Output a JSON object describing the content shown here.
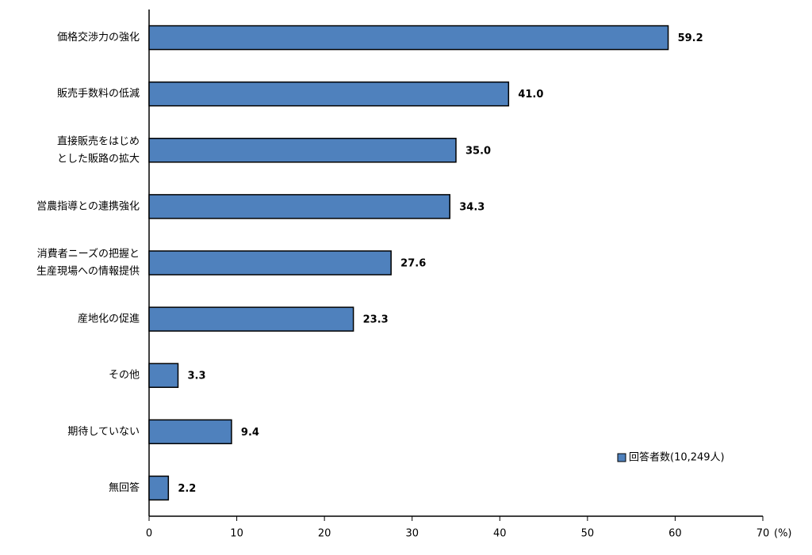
{
  "chart_data": {
    "type": "bar",
    "orientation": "horizontal",
    "categories": [
      [
        "価格交渉力の強化"
      ],
      [
        "販売手数料の低減"
      ],
      [
        "直接販売をはじめ",
        "とした販路の拡大"
      ],
      [
        "営農指導との連携強化"
      ],
      [
        "消費者ニーズの把握と",
        "生産現場への情報提供"
      ],
      [
        "産地化の促進"
      ],
      [
        "その他"
      ],
      [
        "期待していない"
      ],
      [
        "無回答"
      ]
    ],
    "series": [
      {
        "name": "回答者数(10,249人)",
        "color": "#4f81bd",
        "values": [
          59.2,
          41.0,
          35.0,
          34.3,
          27.6,
          23.3,
          3.3,
          9.4,
          2.2
        ],
        "value_labels": [
          "59.2",
          "41.0",
          "35.0",
          "34.3",
          "27.6",
          "23.3",
          "3.3",
          "9.4",
          "2.2"
        ]
      }
    ],
    "xlim": [
      0,
      70
    ],
    "xticks": [
      0,
      10,
      20,
      30,
      40,
      50,
      60,
      70
    ],
    "x_unit_label": "(%)",
    "grid": false,
    "legend": "lower right"
  }
}
